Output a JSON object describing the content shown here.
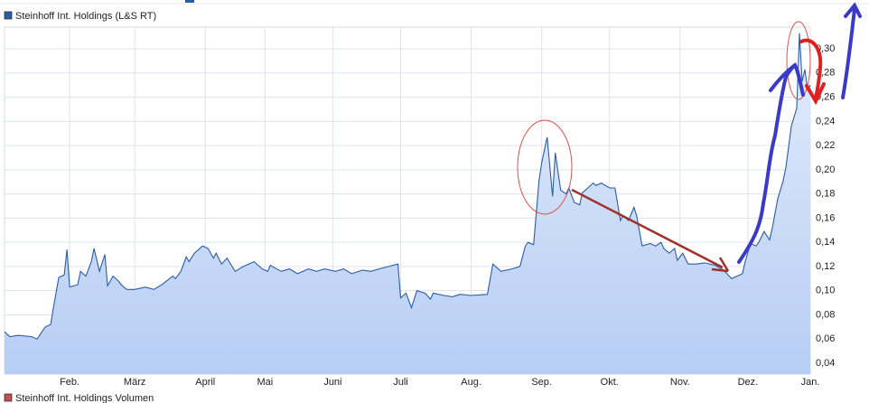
{
  "chart_data": {
    "type": "area",
    "series": [
      {
        "name": "Steinhoff Int. Holdings (L&S RT)",
        "color": "#2a5ca8",
        "x": [
          0,
          2,
          5,
          10,
          12,
          15,
          17,
          18,
          20,
          22,
          23,
          24,
          27,
          28,
          30,
          32,
          33,
          35,
          37,
          38,
          40,
          42,
          43,
          45,
          48,
          52,
          55,
          58,
          62,
          63,
          65,
          67,
          68,
          70,
          73,
          75,
          77,
          78,
          80,
          82,
          85,
          88,
          92,
          95,
          97,
          98,
          102,
          105,
          108,
          112,
          115,
          118,
          122,
          125,
          128,
          132,
          135,
          138,
          145,
          146,
          148,
          150,
          152,
          155,
          157,
          158,
          162,
          165,
          168,
          172,
          178,
          180,
          183,
          187,
          190,
          192,
          193,
          195,
          197,
          198,
          200,
          202,
          203,
          205,
          207,
          208,
          210,
          212,
          213,
          215,
          217,
          218,
          220,
          223,
          225,
          227,
          228,
          230,
          232,
          233,
          235,
          238,
          240,
          242,
          243,
          245,
          247,
          248,
          250,
          252,
          255,
          258,
          262,
          265,
          268,
          272,
          273,
          275,
          277,
          278,
          280,
          282,
          283,
          285,
          287,
          288,
          290,
          292,
          293,
          294,
          295,
          296,
          297
        ],
        "values": [
          0.066,
          0.062,
          0.063,
          0.062,
          0.06,
          0.07,
          0.072,
          0.086,
          0.111,
          0.113,
          0.134,
          0.103,
          0.105,
          0.116,
          0.112,
          0.124,
          0.135,
          0.116,
          0.13,
          0.104,
          0.112,
          0.108,
          0.105,
          0.101,
          0.101,
          0.103,
          0.101,
          0.105,
          0.112,
          0.11,
          0.116,
          0.128,
          0.124,
          0.131,
          0.137,
          0.135,
          0.127,
          0.131,
          0.122,
          0.127,
          0.116,
          0.12,
          0.124,
          0.118,
          0.116,
          0.121,
          0.116,
          0.118,
          0.114,
          0.118,
          0.116,
          0.118,
          0.116,
          0.118,
          0.114,
          0.117,
          0.116,
          0.118,
          0.122,
          0.094,
          0.098,
          0.086,
          0.1,
          0.098,
          0.093,
          0.098,
          0.096,
          0.095,
          0.097,
          0.096,
          0.097,
          0.122,
          0.116,
          0.118,
          0.12,
          0.137,
          0.14,
          0.138,
          0.191,
          0.206,
          0.227,
          0.178,
          0.214,
          0.183,
          0.18,
          0.185,
          0.173,
          0.171,
          0.181,
          0.185,
          0.189,
          0.187,
          0.189,
          0.185,
          0.185,
          0.158,
          0.162,
          0.158,
          0.169,
          0.162,
          0.137,
          0.139,
          0.137,
          0.14,
          0.135,
          0.131,
          0.135,
          0.125,
          0.131,
          0.122,
          0.122,
          0.123,
          0.121,
          0.117,
          0.11,
          0.114,
          0.124,
          0.139,
          0.137,
          0.14,
          0.149,
          0.142,
          0.152,
          0.176,
          0.191,
          0.202,
          0.236,
          0.251,
          0.313,
          0.273,
          0.283,
          0.266,
          0.27
        ]
      }
    ],
    "xlim": [
      0,
      297
    ],
    "xticks": [
      {
        "value": 24,
        "label": "Feb."
      },
      {
        "value": 48,
        "label": "März"
      },
      {
        "value": 74,
        "label": "April"
      },
      {
        "value": 96,
        "label": "Mai"
      },
      {
        "value": 121,
        "label": "Juni"
      },
      {
        "value": 146,
        "label": "Juli"
      },
      {
        "value": 172,
        "label": "Aug."
      },
      {
        "value": 198,
        "label": "Sep."
      },
      {
        "value": 223,
        "label": "Okt."
      },
      {
        "value": 249,
        "label": "Nov."
      },
      {
        "value": 274,
        "label": "Dez."
      },
      {
        "value": 297,
        "label": "Jan."
      }
    ],
    "ylim": [
      0.031,
      0.318
    ],
    "yticks": [
      {
        "value": 0.04,
        "label": "0,04"
      },
      {
        "value": 0.06,
        "label": "0,06"
      },
      {
        "value": 0.08,
        "label": "0,08"
      },
      {
        "value": 0.1,
        "label": "0,10"
      },
      {
        "value": 0.12,
        "label": "0,12"
      },
      {
        "value": 0.14,
        "label": "0,14"
      },
      {
        "value": 0.16,
        "label": "0,16"
      },
      {
        "value": 0.18,
        "label": "0,18"
      },
      {
        "value": 0.2,
        "label": "0,20"
      },
      {
        "value": 0.22,
        "label": "0,22"
      },
      {
        "value": 0.24,
        "label": "0,24"
      },
      {
        "value": 0.26,
        "label": "0,26"
      },
      {
        "value": 0.28,
        "label": "0,28"
      },
      {
        "value": 0.3,
        "label": "0,30"
      }
    ],
    "grid": true
  },
  "lower_panel": {
    "legend": "Steinhoff Int. Holdings Volumen",
    "color": "#c0504d"
  }
}
